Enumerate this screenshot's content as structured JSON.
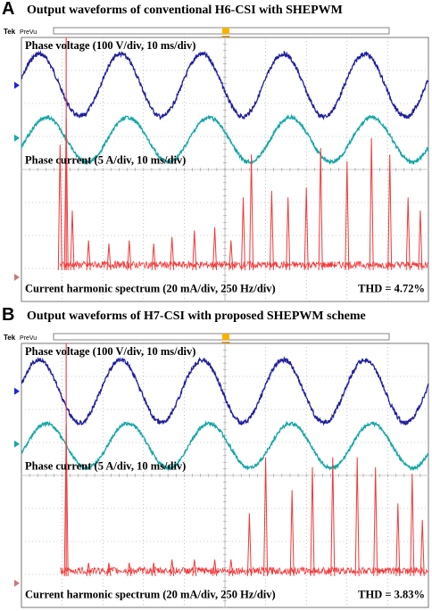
{
  "panels": [
    {
      "label": "A",
      "title": "Output waveforms of conventional H6-CSI with SHEPWM",
      "scope_header": {
        "brand": "Tek",
        "mode": "PreVu"
      },
      "annotations": {
        "voltage": "Phase voltage (100 V/div, 10 ms/div)",
        "current": "Phase current (5 A/div, 10 ms/div)",
        "spectrum": "Current harmonic spectrum (20 mA/div, 250 Hz/div)",
        "thd": "THD = 4.72%"
      },
      "channel_markers": [
        "D",
        "D",
        "D"
      ],
      "colors": {
        "voltage": "#1f1f9e",
        "current": "#16a6a6",
        "spectrum": "#f03a3a",
        "grid": "#9a9a9a"
      },
      "chart_data": {
        "type": "line",
        "cycles_shown": 5,
        "series": [
          {
            "name": "Phase voltage",
            "scale": "100 V/div",
            "amplitude_div": 1.0
          },
          {
            "name": "Phase current",
            "scale": "5 A/div",
            "amplitude_div": 0.9
          },
          {
            "name": "Current harmonic spectrum",
            "scale": "20 mA/div",
            "peaks": [
              {
                "x": 0.095,
                "h": 3.8
              },
              {
                "x": 0.11,
                "h": 4.6
              },
              {
                "x": 0.125,
                "h": 1.8
              },
              {
                "x": 0.165,
                "h": 0.9
              },
              {
                "x": 0.215,
                "h": 0.8
              },
              {
                "x": 0.265,
                "h": 0.9
              },
              {
                "x": 0.325,
                "h": 0.8
              },
              {
                "x": 0.37,
                "h": 1.0
              },
              {
                "x": 0.425,
                "h": 1.2
              },
              {
                "x": 0.475,
                "h": 1.3
              },
              {
                "x": 0.515,
                "h": 0.9
              },
              {
                "x": 0.545,
                "h": 2.2
              },
              {
                "x": 0.565,
                "h": 3.5
              },
              {
                "x": 0.615,
                "h": 2.4
              },
              {
                "x": 0.655,
                "h": 2.2
              },
              {
                "x": 0.7,
                "h": 2.5
              },
              {
                "x": 0.735,
                "h": 3.7
              },
              {
                "x": 0.8,
                "h": 3.3
              },
              {
                "x": 0.86,
                "h": 4.0
              },
              {
                "x": 0.905,
                "h": 3.5
              },
              {
                "x": 0.95,
                "h": 2.2
              },
              {
                "x": 0.98,
                "h": 1.8
              }
            ]
          }
        ]
      }
    },
    {
      "label": "B",
      "title": "Output waveforms of H7-CSI with proposed SHEPWM scheme",
      "scope_header": {
        "brand": "Tek",
        "mode": "PreVu"
      },
      "annotations": {
        "voltage": "Phase voltage (100 V/div, 10 ms/div)",
        "current": "Phase current (5 A/div, 10 ms/div)",
        "spectrum": "Current harmonic spectrum (20 mA/div, 250 Hz/div)",
        "thd": "THD = 3.83%"
      },
      "channel_markers": [
        "D",
        "D",
        "D"
      ],
      "colors": {
        "voltage": "#1f1f9e",
        "current": "#16a6a6",
        "spectrum": "#f03a3a",
        "grid": "#9a9a9a"
      },
      "chart_data": {
        "type": "line",
        "cycles_shown": 5,
        "series": [
          {
            "name": "Phase voltage",
            "scale": "100 V/div",
            "amplitude_div": 1.0
          },
          {
            "name": "Phase current",
            "scale": "5 A/div",
            "amplitude_div": 0.9
          },
          {
            "name": "Current harmonic spectrum",
            "scale": "20 mA/div",
            "peaks": [
              {
                "x": 0.11,
                "h": 4.6
              },
              {
                "x": 0.165,
                "h": 0.4
              },
              {
                "x": 0.215,
                "h": 0.4
              },
              {
                "x": 0.265,
                "h": 0.4
              },
              {
                "x": 0.325,
                "h": 0.4
              },
              {
                "x": 0.37,
                "h": 0.5
              },
              {
                "x": 0.425,
                "h": 0.5
              },
              {
                "x": 0.475,
                "h": 0.5
              },
              {
                "x": 0.515,
                "h": 0.5
              },
              {
                "x": 0.56,
                "h": 1.9
              },
              {
                "x": 0.6,
                "h": 3.6
              },
              {
                "x": 0.665,
                "h": 2.6
              },
              {
                "x": 0.715,
                "h": 3.3
              },
              {
                "x": 0.765,
                "h": 3.6
              },
              {
                "x": 0.825,
                "h": 3.6
              },
              {
                "x": 0.87,
                "h": 3.3
              },
              {
                "x": 0.925,
                "h": 2.2
              },
              {
                "x": 0.96,
                "h": 3.1
              },
              {
                "x": 0.985,
                "h": 1.7
              }
            ]
          }
        ]
      }
    }
  ]
}
